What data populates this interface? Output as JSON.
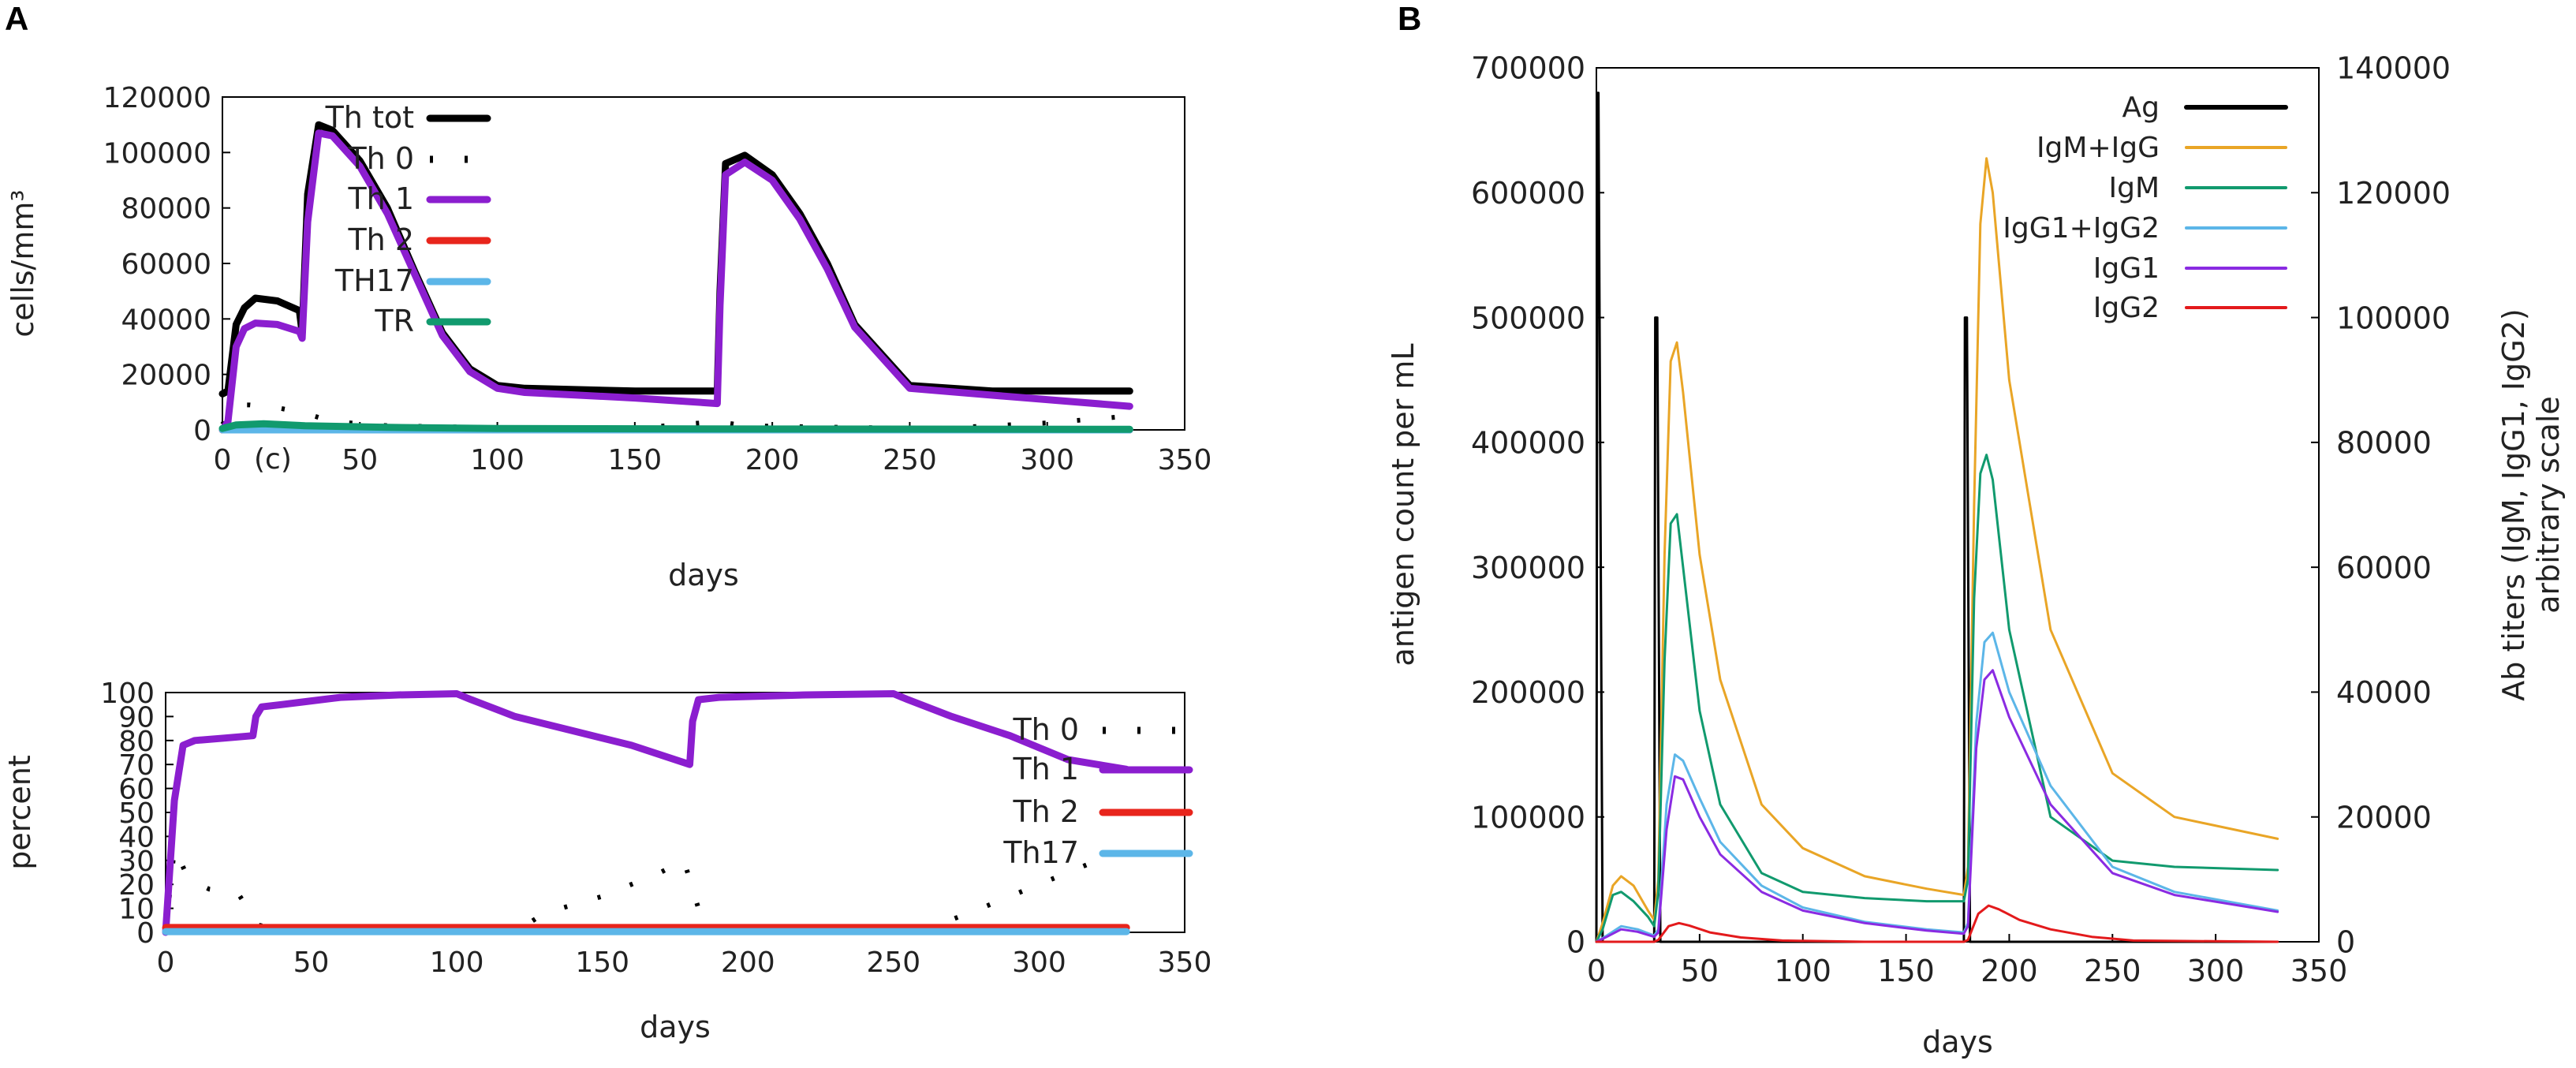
{
  "panels": {
    "a_label": "A",
    "b_label": "B"
  },
  "colors": {
    "black": "#000000",
    "purple": "#8b1ecf",
    "red": "#e8251c",
    "blue": "#5cb6e8",
    "green": "#119a6e",
    "orange": "#e9a526",
    "ab_purple": "#8a2be2",
    "ab_red": "#e31a1c"
  },
  "chart_data": [
    {
      "id": "th_cells",
      "type": "line",
      "title": "",
      "xlabel": "days",
      "ylabel": "cells/mm³",
      "xlim": [
        0,
        350
      ],
      "ylim": [
        0,
        120000
      ],
      "xticks": [
        "0",
        "50",
        "100",
        "150",
        "200",
        "250",
        "300",
        "350"
      ],
      "yticks": [
        "0",
        "20000",
        "40000",
        "60000",
        "80000",
        "100000",
        "120000"
      ],
      "annotation": "(c)",
      "series": [
        {
          "name": "Th tot",
          "style": "solid",
          "color": "#000000",
          "x": [
            0,
            2,
            5,
            8,
            12,
            20,
            28,
            29,
            31,
            35,
            40,
            50,
            60,
            70,
            80,
            90,
            100,
            110,
            150,
            180,
            181,
            183,
            190,
            200,
            210,
            220,
            230,
            250,
            280,
            330
          ],
          "y": [
            13000,
            14000,
            38000,
            44000,
            47500,
            46500,
            43000,
            35000,
            85000,
            110000,
            108000,
            97000,
            80000,
            57000,
            35000,
            22000,
            16000,
            15000,
            14000,
            14000,
            50000,
            96000,
            99000,
            92000,
            78000,
            60000,
            38000,
            16000,
            14000,
            14000
          ]
        },
        {
          "name": "Th 0",
          "style": "dotted",
          "color": "#000000",
          "x": [
            0,
            5,
            10,
            20,
            30,
            40,
            60,
            100,
            150,
            180,
            190,
            220,
            260,
            300,
            330
          ],
          "y": [
            2000,
            9000,
            9000,
            8000,
            6000,
            3000,
            1500,
            800,
            600,
            3000,
            1500,
            1000,
            500,
            2500,
            5000
          ]
        },
        {
          "name": "Th 1",
          "style": "solid",
          "color": "#8b1ecf",
          "x": [
            0,
            2,
            5,
            8,
            12,
            20,
            28,
            29,
            31,
            35,
            40,
            50,
            60,
            70,
            80,
            90,
            100,
            110,
            150,
            180,
            181,
            183,
            190,
            200,
            210,
            220,
            230,
            250,
            280,
            330
          ],
          "y": [
            0,
            3000,
            30000,
            36500,
            38500,
            38000,
            35500,
            33000,
            75000,
            107000,
            106000,
            95000,
            78000,
            56000,
            34000,
            21000,
            15000,
            13500,
            11500,
            9500,
            45000,
            92000,
            96500,
            90000,
            76000,
            58000,
            37000,
            15000,
            12500,
            8500
          ]
        },
        {
          "name": "Th 2",
          "style": "solid",
          "color": "#e8251c",
          "x": [
            0,
            330
          ],
          "y": [
            0,
            0
          ]
        },
        {
          "name": "TH17",
          "style": "solid",
          "color": "#5cb6e8",
          "x": [
            0,
            330
          ],
          "y": [
            0,
            0
          ]
        },
        {
          "name": "TR",
          "style": "solid",
          "color": "#119a6e",
          "x": [
            0,
            5,
            15,
            30,
            60,
            100,
            200,
            330
          ],
          "y": [
            500,
            1800,
            2200,
            1500,
            900,
            500,
            300,
            200
          ]
        }
      ]
    },
    {
      "id": "th_percent",
      "type": "line",
      "title": "",
      "xlabel": "days",
      "ylabel": "percent",
      "xlim": [
        0,
        350
      ],
      "ylim": [
        0,
        100
      ],
      "xticks": [
        "0",
        "50",
        "100",
        "150",
        "200",
        "250",
        "300",
        "350"
      ],
      "yticks": [
        "0",
        "10",
        "20",
        "30",
        "40",
        "50",
        "60",
        "70",
        "80",
        "90",
        "100"
      ],
      "series": [
        {
          "name": "Th 0",
          "style": "dotted",
          "color": "#000000",
          "x": [
            0,
            3,
            8,
            15,
            25,
            32,
            40,
            60,
            100,
            120,
            130,
            150,
            170,
            178,
            181,
            185,
            200,
            250,
            265,
            280,
            300,
            320,
            330
          ],
          "y": [
            0,
            35,
            22,
            18,
            16,
            3,
            1,
            0,
            0,
            0,
            8,
            15,
            25,
            30,
            18,
            2,
            1,
            1,
            3,
            10,
            20,
            30,
            34
          ]
        },
        {
          "name": "Th 1",
          "style": "solid",
          "color": "#8b1ecf",
          "x": [
            0,
            3,
            6,
            10,
            20,
            30,
            31,
            33,
            40,
            60,
            80,
            100,
            105,
            120,
            140,
            160,
            180,
            181,
            183,
            190,
            220,
            250,
            255,
            270,
            290,
            310,
            330
          ],
          "y": [
            0,
            55,
            78,
            80,
            81,
            82,
            90,
            94,
            95,
            98,
            99,
            99.5,
            97,
            90,
            84,
            78,
            70,
            88,
            97,
            98,
            99,
            99.5,
            97,
            90,
            82,
            72,
            68
          ]
        },
        {
          "name": "Th 2",
          "style": "solid",
          "color": "#e8251c",
          "x": [
            0,
            330
          ],
          "y": [
            2,
            2
          ]
        },
        {
          "name": "Th17",
          "style": "solid",
          "color": "#5cb6e8",
          "x": [
            0,
            330
          ],
          "y": [
            0.3,
            0.3
          ]
        }
      ]
    },
    {
      "id": "ag_ab",
      "type": "line",
      "title": "",
      "xlabel": "days",
      "ylabel": "antigen count per mL",
      "y2label_line1": "Ab titers (IgM, IgG1, IgG2)",
      "y2label_line2": "arbitrary scale",
      "xlim": [
        0,
        350
      ],
      "ylim": [
        0,
        700000
      ],
      "y2lim": [
        0,
        140000
      ],
      "xticks": [
        "0",
        "50",
        "100",
        "150",
        "200",
        "250",
        "300",
        "350"
      ],
      "yticks": [
        "0",
        "100000",
        "200000",
        "300000",
        "400000",
        "500000",
        "600000",
        "700000"
      ],
      "y2ticks": [
        "0",
        "20000",
        "40000",
        "60000",
        "80000",
        "100000",
        "120000",
        "140000"
      ],
      "series": [
        {
          "name": "Ag",
          "axis": "left",
          "color": "#000000",
          "x": [
            0,
            0.5,
            1,
            3,
            28,
            28.5,
            29.5,
            31,
            178,
            178.5,
            179.5,
            181,
            330
          ],
          "y": [
            0,
            680000,
            680000,
            0,
            0,
            500000,
            500000,
            0,
            0,
            500000,
            500000,
            0,
            0
          ]
        },
        {
          "name": "IgM+IgG",
          "axis": "right",
          "color": "#e9a526",
          "x": [
            0,
            3,
            8,
            12,
            18,
            25,
            28,
            30,
            33,
            36,
            39,
            42,
            50,
            60,
            80,
            100,
            130,
            160,
            178,
            180,
            183,
            186,
            189,
            192,
            200,
            220,
            250,
            280,
            330
          ],
          "y": [
            0,
            3000,
            9000,
            10500,
            9000,
            5000,
            3500,
            10000,
            62000,
            93000,
            96000,
            88000,
            62000,
            42000,
            22000,
            15000,
            10500,
            8500,
            7500,
            12000,
            70000,
            115000,
            125500,
            120000,
            90000,
            50000,
            27000,
            20000,
            16500
          ]
        },
        {
          "name": "IgM",
          "axis": "right",
          "color": "#119a6e",
          "x": [
            0,
            3,
            8,
            12,
            18,
            25,
            28,
            30,
            33,
            36,
            39,
            42,
            50,
            60,
            80,
            100,
            130,
            160,
            178,
            180,
            183,
            186,
            189,
            192,
            200,
            220,
            250,
            280,
            330
          ],
          "y": [
            0,
            2000,
            7500,
            8000,
            6500,
            4000,
            2500,
            8000,
            45000,
            67000,
            68500,
            60000,
            37000,
            22000,
            11000,
            8000,
            7000,
            6500,
            6500,
            10000,
            55000,
            75000,
            78000,
            74000,
            50000,
            20000,
            13000,
            12000,
            11500
          ]
        },
        {
          "name": "IgG1+IgG2",
          "axis": "right",
          "color": "#5cb6e8",
          "x": [
            0,
            5,
            12,
            20,
            28,
            30,
            34,
            38,
            42,
            50,
            60,
            80,
            100,
            130,
            160,
            178,
            180,
            184,
            188,
            192,
            200,
            220,
            250,
            280,
            330
          ],
          "y": [
            0,
            1000,
            2500,
            2000,
            1000,
            2000,
            22000,
            30000,
            29000,
            23000,
            16000,
            9000,
            5500,
            3200,
            2000,
            1500,
            3000,
            35000,
            48000,
            49500,
            40000,
            25000,
            12000,
            8000,
            5000
          ]
        },
        {
          "name": "IgG1",
          "axis": "right",
          "color": "#8a2be2",
          "x": [
            0,
            5,
            12,
            20,
            28,
            30,
            34,
            38,
            42,
            50,
            60,
            80,
            100,
            130,
            160,
            178,
            180,
            184,
            188,
            192,
            200,
            220,
            250,
            280,
            330
          ],
          "y": [
            0,
            800,
            2000,
            1600,
            800,
            1500,
            18000,
            26500,
            26000,
            20000,
            14000,
            8000,
            5000,
            3000,
            1800,
            1300,
            2500,
            31000,
            42000,
            43500,
            36000,
            22000,
            11000,
            7500,
            4800
          ]
        },
        {
          "name": "IgG2",
          "axis": "right",
          "color": "#e31a1c",
          "x": [
            0,
            28,
            30,
            35,
            40,
            45,
            55,
            70,
            90,
            130,
            178,
            180,
            185,
            190,
            195,
            205,
            220,
            240,
            260,
            330
          ],
          "y": [
            0,
            0,
            300,
            2500,
            3000,
            2600,
            1500,
            700,
            200,
            0,
            0,
            300,
            4500,
            5800,
            5200,
            3500,
            2000,
            800,
            200,
            0
          ]
        }
      ]
    }
  ]
}
